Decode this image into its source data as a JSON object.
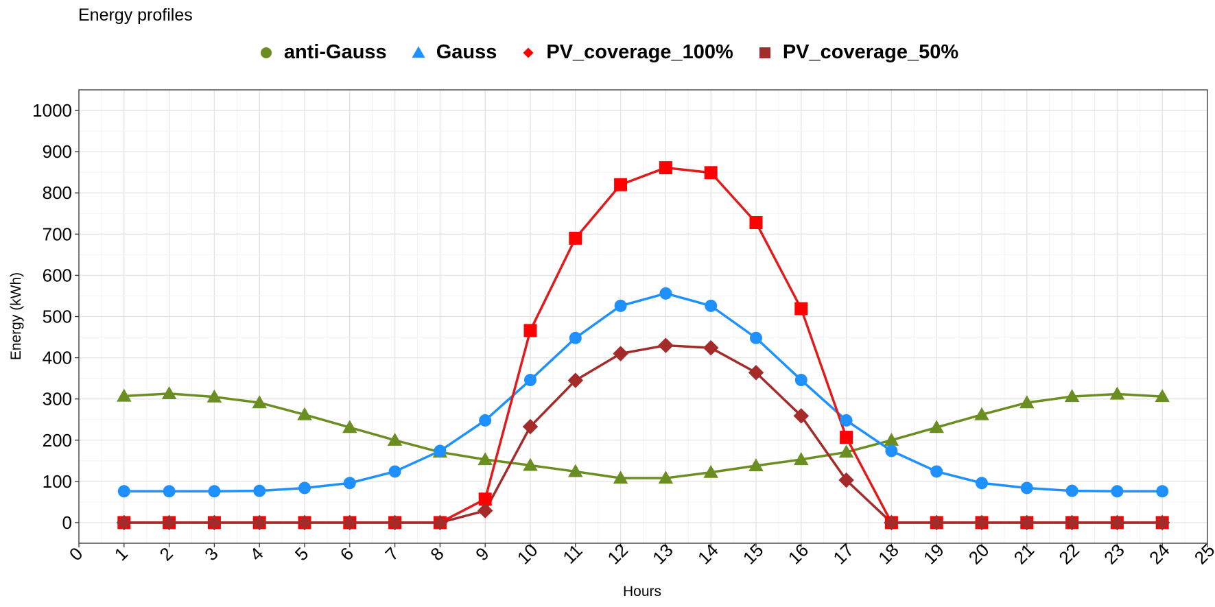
{
  "chart_data": {
    "type": "line",
    "title": "Energy profiles",
    "xlabel": "Hours",
    "ylabel": "Energy (kWh)",
    "xlim": [
      0,
      25
    ],
    "ylim": [
      -50,
      1050
    ],
    "x_ticks": [
      0,
      1,
      2,
      3,
      4,
      5,
      6,
      7,
      8,
      9,
      10,
      11,
      12,
      13,
      14,
      15,
      16,
      17,
      18,
      19,
      20,
      21,
      22,
      23,
      24,
      25
    ],
    "y_ticks": [
      0,
      100,
      200,
      300,
      400,
      500,
      600,
      700,
      800,
      900,
      1000
    ],
    "grid": true,
    "legend_position": "top",
    "x": [
      1,
      2,
      3,
      4,
      5,
      6,
      7,
      8,
      9,
      10,
      11,
      12,
      13,
      14,
      15,
      16,
      17,
      18,
      19,
      20,
      21,
      22,
      23,
      24
    ],
    "series": [
      {
        "name": "anti-Gauss",
        "color": "#6B8E23",
        "marker": "triangle",
        "legend_marker": "circle",
        "values": [
          307,
          313,
          305,
          291,
          262,
          231,
          200,
          171,
          153,
          139,
          124,
          108,
          108,
          122,
          138,
          153,
          171,
          200,
          231,
          262,
          291,
          306,
          312,
          306
        ]
      },
      {
        "name": "Gauss",
        "color": "#1E90FF",
        "marker": "circle",
        "legend_marker": "triangle",
        "values": [
          76,
          76,
          76,
          77,
          84,
          96,
          124,
          174,
          248,
          346,
          448,
          526,
          556,
          526,
          448,
          346,
          248,
          174,
          124,
          96,
          84,
          77,
          76,
          76
        ]
      },
      {
        "name": "PV_coverage_100%",
        "color": "#FF0000",
        "line_color": "#E31A1C",
        "marker": "square",
        "legend_marker": "diamond",
        "values": [
          0,
          0,
          0,
          0,
          0,
          0,
          0,
          0,
          57,
          466,
          690,
          820,
          861,
          849,
          728,
          519,
          207,
          0,
          0,
          0,
          0,
          0,
          0,
          0
        ]
      },
      {
        "name": "PV_coverage_50%",
        "color": "#A52A2A",
        "marker": "diamond",
        "legend_marker": "square",
        "values": [
          0,
          0,
          0,
          0,
          0,
          0,
          0,
          0,
          29,
          233,
          345,
          410,
          430,
          424,
          364,
          259,
          103,
          0,
          0,
          0,
          0,
          0,
          0,
          0
        ]
      }
    ]
  }
}
